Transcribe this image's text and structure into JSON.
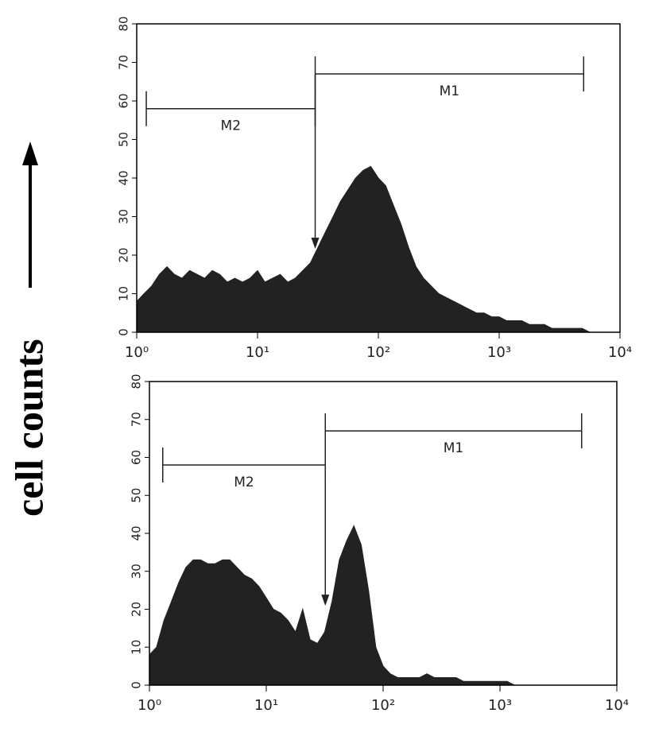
{
  "axis_label": "cell counts",
  "chart_data": [
    {
      "type": "area",
      "xscale": "log",
      "color": "#222222",
      "xlim": [
        1,
        10000
      ],
      "ylim": [
        0,
        80
      ],
      "xticks": [
        {
          "value": 1,
          "label": "10⁰"
        },
        {
          "value": 10,
          "label": "10¹"
        },
        {
          "value": 100,
          "label": "10²"
        },
        {
          "value": 1000,
          "label": "10³"
        },
        {
          "value": 10000,
          "label": "10⁴"
        }
      ],
      "yticks": [
        0,
        10,
        20,
        30,
        40,
        50,
        60,
        70,
        80
      ],
      "x": [
        1,
        1.15,
        1.33,
        1.54,
        1.78,
        2.05,
        2.37,
        2.74,
        3.16,
        3.65,
        4.22,
        4.87,
        5.62,
        6.49,
        7.5,
        8.66,
        10,
        11.5,
        13.3,
        15.4,
        17.8,
        20.5,
        23.7,
        27.4,
        31.6,
        36.5,
        42.2,
        48.7,
        56.2,
        64.9,
        75,
        86.6,
        100,
        115,
        133,
        154,
        178,
        205,
        237,
        274,
        316,
        365,
        422,
        487,
        562,
        649,
        750,
        866,
        1000,
        1150,
        1330,
        1540,
        1780,
        2050,
        2370,
        2740,
        3160,
        3650,
        4220,
        4870,
        5620,
        6490,
        7500,
        8660,
        10000
      ],
      "values": [
        8,
        10,
        12,
        15,
        17,
        15,
        14,
        16,
        15,
        14,
        16,
        15,
        13,
        14,
        13,
        14,
        16,
        13,
        14,
        15,
        13,
        14,
        16,
        18,
        22,
        26,
        30,
        34,
        37,
        40,
        42,
        43,
        40,
        38,
        33,
        28,
        22,
        17,
        14,
        12,
        10,
        9,
        8,
        7,
        6,
        5,
        5,
        4,
        4,
        3,
        3,
        3,
        2,
        2,
        2,
        1,
        1,
        1,
        1,
        1,
        0,
        0,
        0,
        0,
        0
      ],
      "markers": [
        {
          "name": "M2",
          "range": [
            1.2,
            30
          ],
          "level": 58
        },
        {
          "name": "M1",
          "range": [
            30,
            5000
          ],
          "level": 67
        }
      ]
    },
    {
      "type": "area",
      "xscale": "log",
      "color": "#222222",
      "xlim": [
        1,
        10000
      ],
      "ylim": [
        0,
        80
      ],
      "xticks": [
        {
          "value": 1,
          "label": "10⁰"
        },
        {
          "value": 10,
          "label": "10¹"
        },
        {
          "value": 100,
          "label": "10²"
        },
        {
          "value": 1000,
          "label": "10³"
        },
        {
          "value": 10000,
          "label": "10⁴"
        }
      ],
      "yticks": [
        0,
        10,
        20,
        30,
        40,
        50,
        60,
        70,
        80
      ],
      "x": [
        1,
        1.15,
        1.33,
        1.54,
        1.78,
        2.05,
        2.37,
        2.74,
        3.16,
        3.65,
        4.22,
        4.87,
        5.62,
        6.49,
        7.5,
        8.66,
        10,
        11.5,
        13.3,
        15.4,
        17.8,
        20.5,
        23.7,
        27.4,
        31.6,
        36.5,
        42.2,
        48.7,
        56.2,
        64.9,
        75,
        86.6,
        100,
        115,
        133,
        154,
        178,
        205,
        237,
        274,
        316,
        365,
        422,
        487,
        562,
        649,
        750,
        866,
        1000,
        1150,
        1330,
        1540,
        1780,
        2050,
        2370,
        2740,
        3160,
        3650,
        4220,
        4870,
        5620,
        6490,
        7500,
        8660,
        10000
      ],
      "values": [
        8,
        10,
        17,
        22,
        27,
        31,
        33,
        33,
        32,
        32,
        33,
        33,
        31,
        29,
        28,
        26,
        23,
        20,
        19,
        17,
        14,
        20,
        12,
        11,
        14,
        22,
        33,
        38,
        42,
        37,
        25,
        10,
        5,
        3,
        2,
        2,
        2,
        2,
        3,
        2,
        2,
        2,
        2,
        1,
        1,
        1,
        1,
        1,
        1,
        1,
        0,
        0,
        0,
        0,
        0,
        0,
        0,
        0,
        0,
        0,
        0,
        0,
        0,
        0,
        0
      ],
      "markers": [
        {
          "name": "M2",
          "range": [
            1.3,
            32
          ],
          "level": 58
        },
        {
          "name": "M1",
          "range": [
            32,
            5000
          ],
          "level": 67
        }
      ]
    }
  ]
}
